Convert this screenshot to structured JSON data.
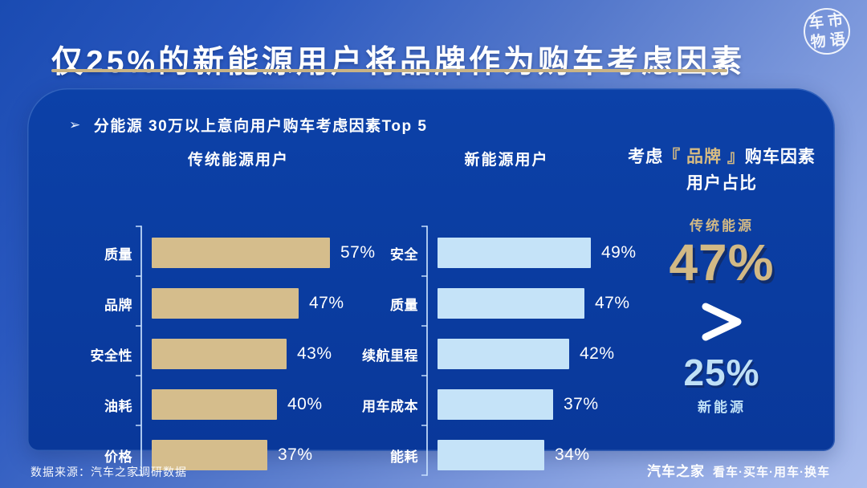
{
  "page": {
    "title": "仅25%的新能源用户将品牌作为购车考虑因素",
    "logo_chars": [
      "车",
      "市",
      "物",
      "语"
    ],
    "footer_source": "数据来源：汽车之家调研数据",
    "footer_brand": "汽车之家",
    "footer_tagline": "看车·买车·用车·换车"
  },
  "card": {
    "bullet": "➢",
    "subtitle": "分能源 30万以上意向用户购车考虑因素Top 5"
  },
  "chart_data": [
    {
      "type": "bar",
      "orientation": "horizontal",
      "title": "传统能源用户",
      "categories": [
        "质量",
        "品牌",
        "安全性",
        "油耗",
        "价格"
      ],
      "values": [
        57,
        47,
        43,
        40,
        37
      ],
      "unit": "%",
      "value_labels": [
        "57%",
        "47%",
        "43%",
        "40%",
        "37%"
      ],
      "bar_color": "#d5bd8c",
      "xlim": [
        0,
        60
      ],
      "grid": false,
      "legend": null
    },
    {
      "type": "bar",
      "orientation": "horizontal",
      "title": "新能源用户",
      "categories": [
        "安全",
        "质量",
        "续航里程",
        "用车成本",
        "能耗"
      ],
      "values": [
        49,
        47,
        42,
        37,
        34
      ],
      "unit": "%",
      "value_labels": [
        "49%",
        "47%",
        "42%",
        "37%",
        "34%"
      ],
      "bar_color": "#c5e3f8",
      "xlim": [
        0,
        60
      ],
      "grid": false,
      "legend": null
    }
  ],
  "panel": {
    "title_prefix": "考虑",
    "title_brand": "『 品牌 』",
    "title_suffix": "购车因素",
    "title_line2": "用户占比",
    "traditional_label": "传统能源",
    "traditional_value": "47%",
    "comparator": ">",
    "nev_value": "25%",
    "nev_label": "新能源"
  },
  "colors": {
    "gold_bar": "#d5bd8c",
    "light_blue_bar": "#c5e3f8",
    "card_blue": "#0a3c9e",
    "gold_line": "#c9b384",
    "big_gold_text": "#d2b985",
    "light_blue_text": "#bfe0f6"
  }
}
